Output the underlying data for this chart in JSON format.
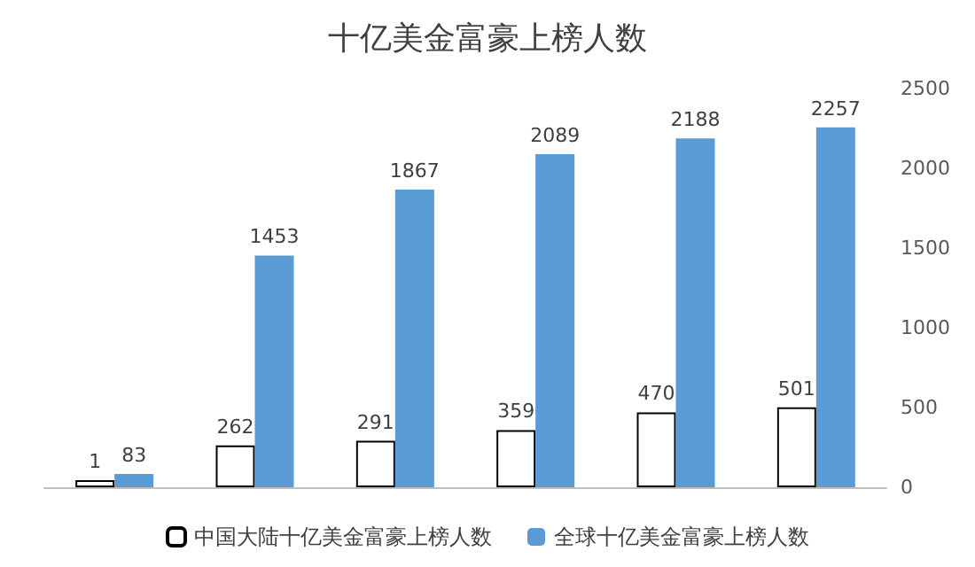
{
  "chart_data": {
    "type": "bar",
    "title": "十亿美金富豪上榜人数",
    "categories": [
      null,
      null,
      null,
      null,
      null,
      null
    ],
    "series": [
      {
        "name": "中国大陆十亿美金富豪上榜人数",
        "color": "#ffffff",
        "values": [
          1,
          262,
          291,
          359,
          470,
          501
        ]
      },
      {
        "name": "全球十亿美金富豪上榜人数",
        "color": "#5b9bd5",
        "values": [
          83,
          1453,
          1867,
          2089,
          2188,
          2257
        ]
      }
    ],
    "ylim": [
      0,
      2500
    ],
    "yticks": [
      0,
      500,
      1000,
      1500,
      2000,
      2500
    ],
    "data_labels": true,
    "legend": "bottom",
    "grid": false
  }
}
